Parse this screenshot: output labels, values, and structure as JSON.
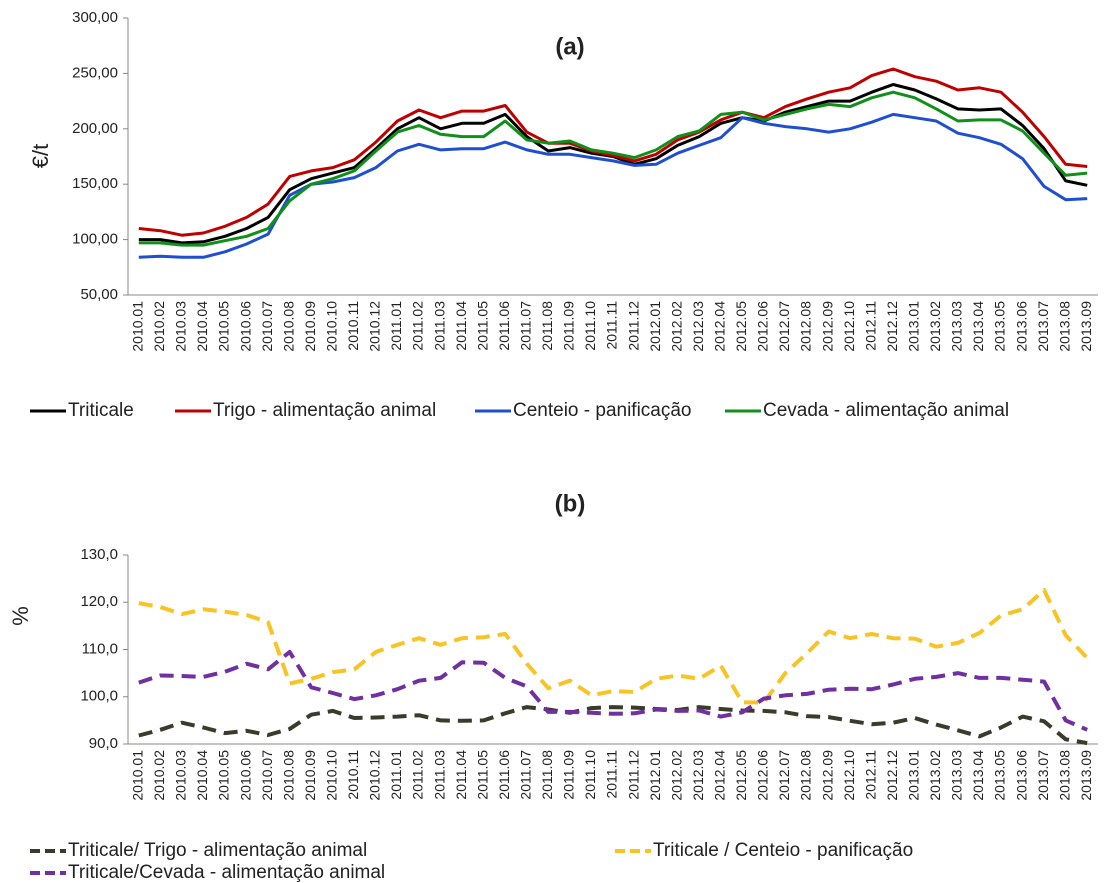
{
  "chart_data": [
    {
      "type": "line",
      "title": "(a)",
      "y_label": "€/t",
      "line_style": "solid",
      "categories": [
        "2010.01",
        "2010.02",
        "2010.03",
        "2010.04",
        "2010.05",
        "2010.06",
        "2010.07",
        "2010.08",
        "2010.09",
        "2010.10",
        "2010.11",
        "2010.12",
        "2011.01",
        "2011.02",
        "2011.03",
        "2011.04",
        "2011.05",
        "2011.06",
        "2011.07",
        "2011.08",
        "2011.09",
        "2011.10",
        "2011.11",
        "2011.12",
        "2012.01",
        "2012.02",
        "2012.03",
        "2012.04",
        "2012.05",
        "2012.06",
        "2012.07",
        "2012.08",
        "2012.09",
        "2012.10",
        "2012.11",
        "2012.12",
        "2013.01",
        "2013.02",
        "2013.03",
        "2013.04",
        "2013.05",
        "2013.06",
        "2013.07",
        "2013.08",
        "2013.09"
      ],
      "ylim": [
        50,
        300
      ],
      "yticks": [
        {
          "value": 50,
          "label": "50,00"
        },
        {
          "value": 100,
          "label": "100,00"
        },
        {
          "value": 150,
          "label": "150,00"
        },
        {
          "value": 200,
          "label": "200,00"
        },
        {
          "value": 250,
          "label": "250,00"
        },
        {
          "value": 300,
          "label": "300,00"
        }
      ],
      "series": [
        {
          "name": "Triticale",
          "color": "#000000",
          "values": [
            100,
            100,
            97,
            98,
            103,
            110,
            120,
            145,
            155,
            160,
            165,
            182,
            200,
            210,
            200,
            205,
            205,
            213,
            193,
            180,
            183,
            178,
            175,
            168,
            173,
            185,
            193,
            205,
            210,
            207,
            215,
            220,
            225,
            225,
            233,
            240,
            235,
            227,
            218,
            217,
            218,
            203,
            182,
            153,
            149
          ]
        },
        {
          "name": "Trigo - alimentação animal",
          "color": "#c00000",
          "values": [
            110,
            108,
            104,
            106,
            112,
            120,
            132,
            157,
            162,
            165,
            172,
            188,
            207,
            217,
            210,
            216,
            216,
            221,
            197,
            187,
            187,
            180,
            176,
            171,
            177,
            190,
            197,
            208,
            215,
            210,
            220,
            227,
            233,
            237,
            248,
            254,
            247,
            243,
            235,
            237,
            233,
            215,
            193,
            168,
            166
          ]
        },
        {
          "name": "Centeio - panificação",
          "color": "#1f4fd1",
          "values": [
            84,
            85,
            84,
            84,
            89,
            96,
            105,
            140,
            150,
            152,
            156,
            165,
            180,
            186,
            181,
            182,
            182,
            188,
            181,
            177,
            177,
            174,
            171,
            167,
            168,
            178,
            185,
            192,
            210,
            205,
            202,
            200,
            197,
            200,
            206,
            213,
            210,
            207,
            196,
            192,
            186,
            173,
            148,
            136,
            137
          ]
        },
        {
          "name": "Cevada - alimentação animal",
          "color": "#10901a",
          "values": [
            97,
            97,
            95,
            95,
            99,
            103,
            110,
            135,
            150,
            155,
            162,
            180,
            197,
            203,
            195,
            193,
            193,
            207,
            190,
            187,
            189,
            181,
            178,
            174,
            181,
            193,
            198,
            213,
            215,
            208,
            213,
            218,
            222,
            220,
            228,
            233,
            228,
            218,
            207,
            208,
            208,
            198,
            178,
            158,
            160
          ]
        }
      ]
    },
    {
      "type": "line",
      "title": "(b)",
      "y_label": "%",
      "line_style": "dashed",
      "categories": [
        "2010.01",
        "2010.02",
        "2010.03",
        "2010.04",
        "2010.05",
        "2010.06",
        "2010.07",
        "2010.08",
        "2010.09",
        "2010.10",
        "2010.11",
        "2010.12",
        "2011.01",
        "2011.02",
        "2011.03",
        "2011.04",
        "2011.05",
        "2011.06",
        "2011.07",
        "2011.08",
        "2011.09",
        "2011.10",
        "2011.11",
        "2011.12",
        "2012.01",
        "2012.02",
        "2012.03",
        "2012.04",
        "2012.05",
        "2012.06",
        "2012.07",
        "2012.08",
        "2012.09",
        "2012.10",
        "2012.11",
        "2012.12",
        "2013.01",
        "2013.02",
        "2013.03",
        "2013.04",
        "2013.05",
        "2013.06",
        "2013.07",
        "2013.08",
        "2013.09"
      ],
      "ylim": [
        90,
        130
      ],
      "yticks": [
        {
          "value": 90,
          "label": "90,0"
        },
        {
          "value": 100,
          "label": "100,0"
        },
        {
          "value": 110,
          "label": "110,0"
        },
        {
          "value": 120,
          "label": "120,0"
        },
        {
          "value": 130,
          "label": "130,0"
        }
      ],
      "series": [
        {
          "name": "Triticale/ Trigo - alimentação animal",
          "color": "#3b3b2b",
          "values": [
            91.8,
            93,
            94.5,
            93.5,
            92.3,
            92.8,
            91.9,
            93.2,
            96.2,
            97,
            95.5,
            95.6,
            95.8,
            96.1,
            95,
            94.9,
            95,
            96.5,
            97.8,
            97.3,
            96.6,
            97.6,
            97.8,
            97.7,
            97.4,
            97.2,
            97.8,
            97.4,
            97.1,
            97,
            96.7,
            95.9,
            95.7,
            94.9,
            94.2,
            94.5,
            95.5,
            94.1,
            92.9,
            91.6,
            93.5,
            95.8,
            94.8,
            91,
            90.2
          ]
        },
        {
          "name": "Triticale / Centeio - panificação",
          "color": "#f7c325",
          "values": [
            119.8,
            119,
            117.5,
            118.5,
            118,
            117.3,
            115.8,
            102.8,
            103.8,
            105.2,
            105.8,
            109.5,
            111,
            112.4,
            111,
            112.4,
            112.6,
            113.3,
            107,
            101.8,
            103.4,
            100.3,
            101.2,
            101,
            103.8,
            104.5,
            103.8,
            106.6,
            98.8,
            98.8,
            105,
            109.2,
            113.8,
            112.4,
            113.3,
            112.4,
            112.3,
            110.6,
            111.4,
            113.5,
            117.2,
            118.5,
            122.6,
            113,
            108.2
          ]
        },
        {
          "name": "Triticale/Cevada - alimentação animal",
          "color": "#7030a0",
          "values": [
            103,
            104.5,
            104.4,
            104.2,
            105.3,
            107,
            105.8,
            109.5,
            102,
            100.8,
            99.5,
            100.3,
            101.6,
            103.4,
            104,
            107.3,
            107.2,
            104,
            102.2,
            96.8,
            96.8,
            96.6,
            96.4,
            96.5,
            97.3,
            97,
            97.1,
            95.8,
            96.7,
            99.6,
            100.3,
            100.6,
            101.5,
            101.7,
            101.6,
            102.6,
            103.8,
            104.2,
            105,
            104,
            104,
            103.6,
            103.2,
            95,
            93
          ]
        }
      ]
    }
  ]
}
